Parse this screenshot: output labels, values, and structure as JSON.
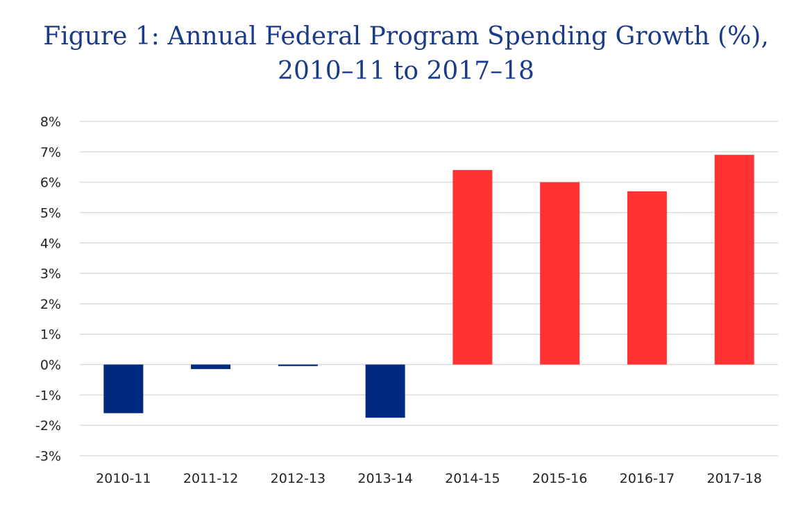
{
  "chart_data": {
    "type": "bar",
    "title_line1": "Figure 1: Annual Federal Program Spending Growth (%),",
    "title_line2": "2010–11 to 2017–18",
    "xlabel": "",
    "ylabel": "",
    "categories": [
      "2010-11",
      "2011-12",
      "2012-13",
      "2013-14",
      "2014-15",
      "2015-16",
      "2016-17",
      "2017-18"
    ],
    "values": [
      -1.6,
      -0.15,
      -0.05,
      -1.75,
      6.4,
      6.0,
      5.7,
      6.9
    ],
    "ylim": [
      -3,
      8
    ],
    "yticks": [
      8,
      7,
      6,
      5,
      4,
      3,
      2,
      1,
      0,
      -1,
      -2,
      -3
    ],
    "ytick_labels": [
      "8%",
      "7%",
      "6%",
      "5%",
      "4%",
      "3%",
      "2%",
      "1%",
      "0%",
      "-1%",
      "-2%",
      "-3%"
    ],
    "grid": true,
    "legend": "none",
    "colors": {
      "negative": "#002a7f",
      "positive": "#ff3333",
      "grid": "#d9d9d9",
      "title": "#1a3a8a"
    }
  }
}
